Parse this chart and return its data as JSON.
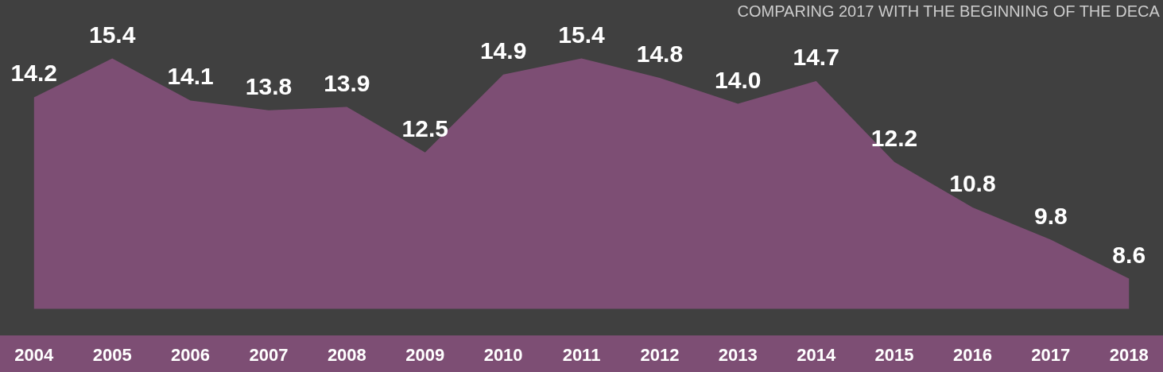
{
  "chart_data": {
    "type": "area",
    "subtitle": "COMPARING 2017 WITH THE BEGINNING OF THE DECA",
    "categories": [
      "2004",
      "2005",
      "2006",
      "2007",
      "2008",
      "2009",
      "2010",
      "2011",
      "2012",
      "2013",
      "2014",
      "2015",
      "2016",
      "2017",
      "2018"
    ],
    "values": [
      14.2,
      15.4,
      14.1,
      13.8,
      13.9,
      12.5,
      14.9,
      15.4,
      14.8,
      14.0,
      14.7,
      12.2,
      10.8,
      9.8,
      8.6
    ],
    "value_labels": [
      "14.2",
      "15.4",
      "14.1",
      "13.8",
      "13.9",
      "12.5",
      "14.9",
      "15.4",
      "14.8",
      "14.0",
      "14.7",
      "12.2",
      "10.8",
      "9.8",
      "8.6"
    ],
    "color": "#7d4e74",
    "grid": false
  }
}
